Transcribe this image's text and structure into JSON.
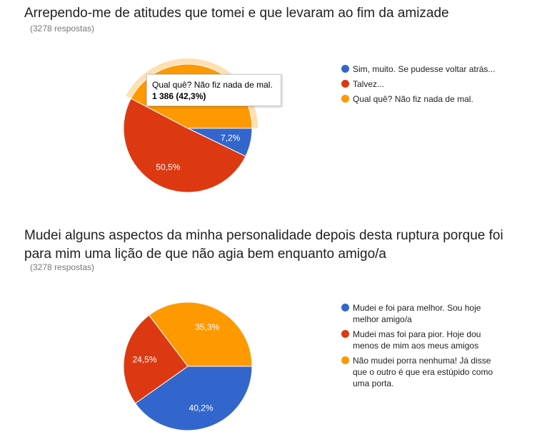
{
  "chart_data": [
    {
      "type": "pie",
      "title": "Arrependo-me de atitudes que tomei e que levaram ao fim da amizade",
      "subtitle": "(3278 respostas)",
      "categories": [
        "Sim, muito. Se pudesse voltar atrás...",
        "Talvez...",
        "Qual quê? Não fiz nada de mal."
      ],
      "values": [
        7.2,
        50.5,
        42.3
      ],
      "value_labels": [
        "7,2%",
        "50,5%",
        null
      ],
      "colors": [
        "#3366cc",
        "#dc3912",
        "#ff9900"
      ],
      "tooltip": {
        "title": "Qual quê? Não fiz nada de mal.",
        "text": "1 386 (42,3%)"
      },
      "legend": "right"
    },
    {
      "type": "pie",
      "title": "Mudei alguns aspectos da minha personalidade depois desta ruptura porque foi para mim uma lição de que não agia bem enquanto amigo/a",
      "subtitle": "(3278 respostas)",
      "categories": [
        "Mudei e foi para melhor. Sou hoje melhor amigo/a",
        "Mudei mas foi para pior. Hoje dou menos de mim aos meus amigos",
        "Não mudei porra nenhuma! Já disse que o outro é que era estúpido como uma porta."
      ],
      "values": [
        40.2,
        24.5,
        35.3
      ],
      "value_labels": [
        "40,2%",
        "24,5%",
        "35,3%"
      ],
      "colors": [
        "#3366cc",
        "#dc3912",
        "#ff9900"
      ],
      "legend": "right"
    }
  ]
}
